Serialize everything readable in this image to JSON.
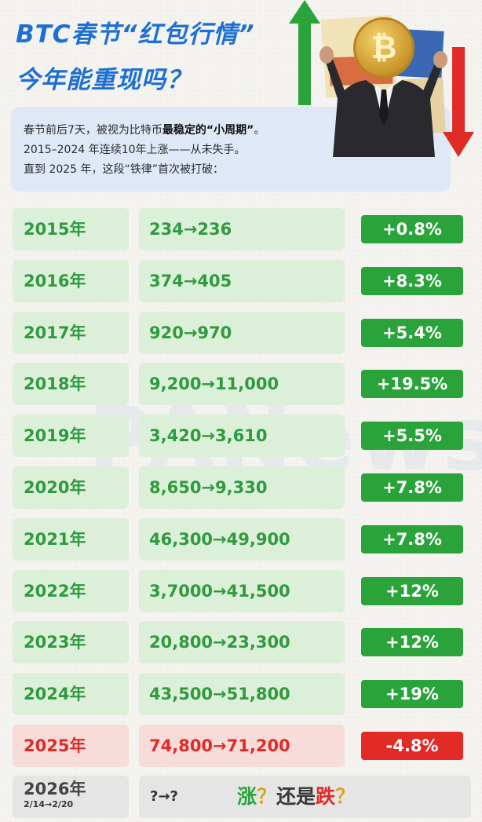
{
  "header": {
    "title_line1": "BTC春节“红包行情”",
    "title_line2": "今年能重现吗？"
  },
  "intro": {
    "line1_pre": "春节前后7天，被视为比特币",
    "line1_bold": "最稳定的“小周期”",
    "line1_post": "。",
    "line2": "2015–2024 年连续10年上涨——从未失手。",
    "line3": "直到 2025 年，这段“铁律”首次被打破："
  },
  "hero": {
    "coin_symbol": "₿",
    "up_arrow_color": "#2aa33b",
    "down_arrow_color": "#e02b26"
  },
  "watermark": "PANews",
  "rows": [
    {
      "year": "2015年",
      "range": "234→236",
      "change": "+0.8%"
    },
    {
      "year": "2016年",
      "range": "374→405",
      "change": "+8.3%"
    },
    {
      "year": "2017年",
      "range": "920→970",
      "change": "+5.4%"
    },
    {
      "year": "2018年",
      "range": "9,200→11,000",
      "change": "+19.5%"
    },
    {
      "year": "2019年",
      "range": "3,420→3,610",
      "change": "+5.5%"
    },
    {
      "year": "2020年",
      "range": "8,650→9,330",
      "change": "+7.8%"
    },
    {
      "year": "2021年",
      "range": "46,300→49,900",
      "change": "+7.8%"
    },
    {
      "year": "2022年",
      "range": "3,7000→41,500",
      "change": "+12%"
    },
    {
      "year": "2023年",
      "range": "20,800→23,300",
      "change": "+12%"
    },
    {
      "year": "2024年",
      "range": "43,500→51,800",
      "change": "+19%"
    },
    {
      "year": "2025年",
      "range": "74,800→71,200",
      "change": "-4.8%"
    }
  ],
  "future": {
    "year": "2026年",
    "dates": "2/14→2/20",
    "range": "?→?",
    "word_up": "涨",
    "q1": "？",
    "word_mid": "还是",
    "word_down": "跌",
    "q2": "？"
  },
  "colors": {
    "title_blue": "#1e6fd2",
    "up_green": "#2aa33b",
    "down_red": "#e02b26",
    "intro_bg": "#dfe8f6"
  }
}
